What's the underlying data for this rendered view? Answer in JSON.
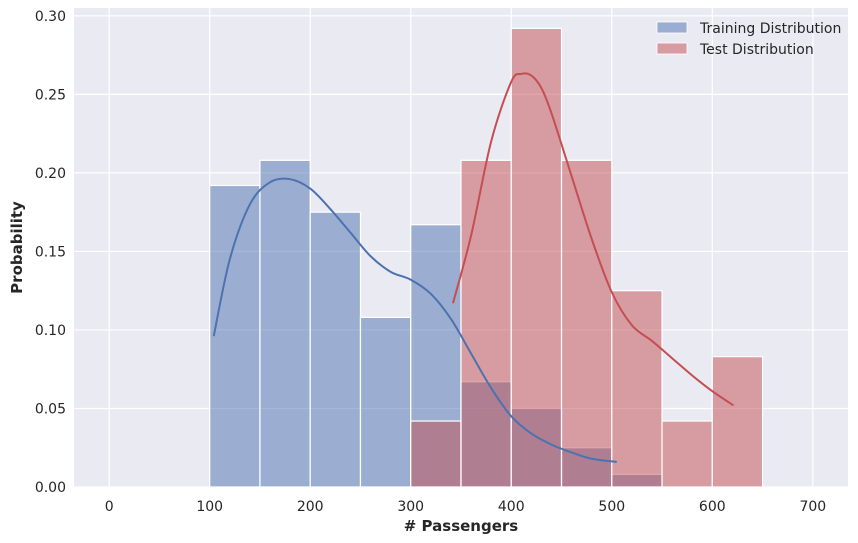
{
  "chart_data": {
    "type": "histogram",
    "xlabel": "# Passengers",
    "ylabel": "Probability",
    "xlim": [
      -35,
      735
    ],
    "ylim": [
      0,
      0.305
    ],
    "xticks": [
      0,
      100,
      200,
      300,
      400,
      500,
      600,
      700
    ],
    "yticks": [
      0.0,
      0.05,
      0.1,
      0.15,
      0.2,
      0.25,
      0.3
    ],
    "ytick_labels": [
      "0.00",
      "0.05",
      "0.10",
      "0.15",
      "0.20",
      "0.25",
      "0.30"
    ],
    "grid": true,
    "legend_position": "top-right",
    "series": [
      {
        "name": "Training Distribution",
        "color": "#4c72b0",
        "bins": [
          {
            "x0": 100,
            "x1": 150,
            "value": 0.192
          },
          {
            "x0": 150,
            "x1": 200,
            "value": 0.208
          },
          {
            "x0": 200,
            "x1": 250,
            "value": 0.175
          },
          {
            "x0": 250,
            "x1": 300,
            "value": 0.108
          },
          {
            "x0": 300,
            "x1": 350,
            "value": 0.167
          },
          {
            "x0": 350,
            "x1": 400,
            "value": 0.067
          },
          {
            "x0": 400,
            "x1": 450,
            "value": 0.05
          },
          {
            "x0": 450,
            "x1": 500,
            "value": 0.025
          },
          {
            "x0": 500,
            "x1": 550,
            "value": 0.008
          }
        ],
        "kde": {
          "x": [
            104,
            120,
            140,
            160,
            180,
            200,
            220,
            240,
            260,
            280,
            300,
            320,
            340,
            360,
            380,
            400,
            420,
            440,
            460,
            480,
            505
          ],
          "y": [
            0.096,
            0.145,
            0.18,
            0.194,
            0.196,
            0.19,
            0.177,
            0.162,
            0.147,
            0.137,
            0.132,
            0.123,
            0.107,
            0.085,
            0.063,
            0.045,
            0.034,
            0.027,
            0.022,
            0.018,
            0.016
          ]
        }
      },
      {
        "name": "Test Distribution",
        "color": "#c44e52",
        "bins": [
          {
            "x0": 300,
            "x1": 350,
            "value": 0.042
          },
          {
            "x0": 350,
            "x1": 400,
            "value": 0.208
          },
          {
            "x0": 400,
            "x1": 450,
            "value": 0.292
          },
          {
            "x0": 450,
            "x1": 500,
            "value": 0.208
          },
          {
            "x0": 500,
            "x1": 550,
            "value": 0.125
          },
          {
            "x0": 550,
            "x1": 600,
            "value": 0.042
          },
          {
            "x0": 600,
            "x1": 650,
            "value": 0.083
          }
        ],
        "kde": {
          "x": [
            342,
            360,
            380,
            400,
            410,
            420,
            430,
            440,
            460,
            480,
            500,
            520,
            540,
            560,
            580,
            600,
            621
          ],
          "y": [
            0.117,
            0.16,
            0.22,
            0.258,
            0.263,
            0.262,
            0.254,
            0.238,
            0.198,
            0.158,
            0.124,
            0.103,
            0.093,
            0.082,
            0.071,
            0.061,
            0.052
          ]
        }
      }
    ]
  }
}
